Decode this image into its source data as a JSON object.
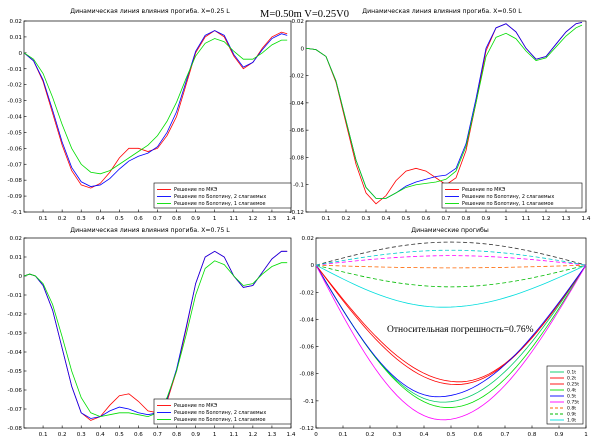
{
  "figure": {
    "param_label": "M=0.50m   V=0.25V0"
  },
  "chart_data": [
    {
      "type": "line",
      "title": "Динамическая линия влияния прогиба. X=0.25 L",
      "xlim": [
        0,
        1.4
      ],
      "ylim": [
        -0.1,
        0.02
      ],
      "xticks": [
        "0.1",
        "0.2",
        "0.3",
        "0.4",
        "0.5",
        "0.6",
        "0.7",
        "0.8",
        "0.9",
        "1",
        "1.1",
        "1.2",
        "1.3",
        "1.4"
      ],
      "yticks": [
        "0.02",
        "0.01",
        "0",
        "-0.01",
        "-0.02",
        "-0.03",
        "-0.04",
        "-0.05",
        "-0.06",
        "-0.07",
        "-0.08",
        "-0.09",
        "-0.1"
      ],
      "legend_position": "bottom-right",
      "series": [
        {
          "name": "Решение по МКЭ",
          "color": "#ff0000",
          "x": [
            0,
            0.05,
            0.1,
            0.15,
            0.2,
            0.25,
            0.3,
            0.35,
            0.4,
            0.45,
            0.5,
            0.55,
            0.6,
            0.65,
            0.7,
            0.75,
            0.8,
            0.85,
            0.9,
            0.95,
            1.0,
            1.05,
            1.1,
            1.15,
            1.2,
            1.25,
            1.3,
            1.35,
            1.38
          ],
          "y": [
            0,
            -0.005,
            -0.018,
            -0.038,
            -0.058,
            -0.074,
            -0.083,
            -0.085,
            -0.082,
            -0.075,
            -0.066,
            -0.06,
            -0.06,
            -0.062,
            -0.06,
            -0.052,
            -0.04,
            -0.02,
            0.0,
            0.01,
            0.014,
            0.01,
            -0.002,
            -0.01,
            -0.006,
            0.003,
            0.01,
            0.013,
            0.012
          ]
        },
        {
          "name": "Решение по Болотину, 2 слагаемых",
          "color": "#0000ff",
          "x": [
            0,
            0.05,
            0.1,
            0.15,
            0.2,
            0.25,
            0.3,
            0.35,
            0.4,
            0.45,
            0.5,
            0.55,
            0.6,
            0.65,
            0.7,
            0.75,
            0.8,
            0.85,
            0.9,
            0.95,
            1.0,
            1.05,
            1.1,
            1.15,
            1.2,
            1.25,
            1.3,
            1.35,
            1.38
          ],
          "y": [
            0,
            -0.005,
            -0.017,
            -0.036,
            -0.056,
            -0.072,
            -0.081,
            -0.084,
            -0.083,
            -0.079,
            -0.073,
            -0.068,
            -0.065,
            -0.063,
            -0.059,
            -0.05,
            -0.037,
            -0.018,
            0.001,
            0.011,
            0.014,
            0.011,
            -0.001,
            -0.009,
            -0.006,
            0.002,
            0.009,
            0.012,
            0.011
          ]
        },
        {
          "name": "Решение по Болотину, 1 слагаемое",
          "color": "#00dd00",
          "x": [
            0,
            0.05,
            0.1,
            0.15,
            0.2,
            0.25,
            0.3,
            0.35,
            0.4,
            0.45,
            0.5,
            0.55,
            0.6,
            0.65,
            0.7,
            0.75,
            0.8,
            0.85,
            0.9,
            0.95,
            1.0,
            1.05,
            1.1,
            1.15,
            1.2,
            1.25,
            1.3,
            1.35,
            1.38
          ],
          "y": [
            0,
            -0.004,
            -0.013,
            -0.028,
            -0.045,
            -0.06,
            -0.07,
            -0.075,
            -0.076,
            -0.074,
            -0.07,
            -0.066,
            -0.062,
            -0.058,
            -0.052,
            -0.043,
            -0.031,
            -0.016,
            -0.002,
            0.006,
            0.009,
            0.007,
            0.001,
            -0.004,
            -0.004,
            0.0,
            0.005,
            0.008,
            0.008
          ]
        }
      ]
    },
    {
      "type": "line",
      "title": "Динамическая линия влияния прогиба. X=0.50 L",
      "xlim": [
        0,
        1.4
      ],
      "ylim": [
        -0.12,
        0.02
      ],
      "xticks": [
        "0.1",
        "0.2",
        "0.3",
        "0.4",
        "0.5",
        "0.6",
        "0.7",
        "0.8",
        "0.9",
        "1",
        "1.1",
        "1.2",
        "1.3",
        "1.4"
      ],
      "yticks": [
        "0.02",
        "0",
        "-0.02",
        "-0.04",
        "-0.06",
        "-0.08",
        "-0.1",
        "-0.12"
      ],
      "legend_position": "bottom-right",
      "series": [
        {
          "name": "Решение по МКЭ",
          "color": "#ff0000",
          "x": [
            0,
            0.05,
            0.1,
            0.15,
            0.2,
            0.25,
            0.3,
            0.35,
            0.4,
            0.45,
            0.5,
            0.55,
            0.6,
            0.65,
            0.7,
            0.75,
            0.8,
            0.85,
            0.9,
            0.95,
            1.0,
            1.05,
            1.1,
            1.15,
            1.2,
            1.25,
            1.3,
            1.35,
            1.38
          ],
          "y": [
            0,
            -0.001,
            -0.006,
            -0.025,
            -0.055,
            -0.085,
            -0.106,
            -0.114,
            -0.108,
            -0.097,
            -0.09,
            -0.088,
            -0.09,
            -0.095,
            -0.1,
            -0.095,
            -0.075,
            -0.04,
            -0.002,
            0.015,
            0.018,
            0.012,
            0.0,
            -0.008,
            -0.006,
            0.003,
            0.012,
            0.018,
            0.019
          ]
        },
        {
          "name": "Решение по Болотину, 2 слагаемых",
          "color": "#0000ff",
          "x": [
            0,
            0.05,
            0.1,
            0.15,
            0.2,
            0.25,
            0.3,
            0.35,
            0.4,
            0.45,
            0.5,
            0.55,
            0.6,
            0.65,
            0.7,
            0.75,
            0.8,
            0.85,
            0.9,
            0.95,
            1.0,
            1.05,
            1.1,
            1.15,
            1.2,
            1.25,
            1.3,
            1.35,
            1.38
          ],
          "y": [
            0,
            -0.001,
            -0.006,
            -0.024,
            -0.053,
            -0.082,
            -0.102,
            -0.11,
            -0.11,
            -0.106,
            -0.101,
            -0.098,
            -0.096,
            -0.094,
            -0.093,
            -0.088,
            -0.07,
            -0.037,
            0.0,
            0.015,
            0.018,
            0.012,
            0.0,
            -0.008,
            -0.006,
            0.003,
            0.012,
            0.018,
            0.019
          ]
        },
        {
          "name": "Решение по Болотину, 1 слагаемое",
          "color": "#00dd00",
          "x": [
            0,
            0.05,
            0.1,
            0.15,
            0.2,
            0.25,
            0.3,
            0.35,
            0.4,
            0.45,
            0.5,
            0.55,
            0.6,
            0.65,
            0.7,
            0.75,
            0.8,
            0.85,
            0.9,
            0.95,
            1.0,
            1.05,
            1.1,
            1.15,
            1.2,
            1.25,
            1.3,
            1.35,
            1.38
          ],
          "y": [
            0,
            -0.001,
            -0.006,
            -0.024,
            -0.053,
            -0.082,
            -0.102,
            -0.11,
            -0.11,
            -0.106,
            -0.102,
            -0.1,
            -0.099,
            -0.098,
            -0.096,
            -0.09,
            -0.072,
            -0.04,
            -0.006,
            0.008,
            0.011,
            0.007,
            -0.002,
            -0.009,
            -0.007,
            0.001,
            0.009,
            0.015,
            0.017
          ]
        }
      ]
    },
    {
      "type": "line",
      "title": "Динамическая линия влияния прогиба. X=0.75 L",
      "xlim": [
        0,
        1.4
      ],
      "ylim": [
        -0.08,
        0.02
      ],
      "xticks": [
        "0.1",
        "0.2",
        "0.3",
        "0.4",
        "0.5",
        "0.6",
        "0.7",
        "0.8",
        "0.9",
        "1",
        "1.1",
        "1.2",
        "1.3",
        "1.4"
      ],
      "yticks": [
        "0.02",
        "0.01",
        "0",
        "-0.01",
        "-0.02",
        "-0.03",
        "-0.04",
        "-0.05",
        "-0.06",
        "-0.07",
        "-0.08"
      ],
      "legend_position": "bottom-right",
      "series": [
        {
          "name": "Решение по МКЭ",
          "color": "#ff0000",
          "x": [
            0,
            0.03,
            0.06,
            0.1,
            0.15,
            0.2,
            0.25,
            0.3,
            0.35,
            0.4,
            0.45,
            0.5,
            0.55,
            0.6,
            0.65,
            0.7,
            0.75,
            0.8,
            0.85,
            0.9,
            0.95,
            1.0,
            1.05,
            1.1,
            1.15,
            1.2,
            1.25,
            1.3,
            1.35,
            1.38
          ],
          "y": [
            0,
            0.001,
            0.0,
            -0.005,
            -0.018,
            -0.038,
            -0.058,
            -0.072,
            -0.076,
            -0.074,
            -0.068,
            -0.063,
            -0.062,
            -0.066,
            -0.071,
            -0.072,
            -0.066,
            -0.05,
            -0.028,
            -0.004,
            0.01,
            0.013,
            0.01,
            0.0,
            -0.006,
            -0.005,
            0.002,
            0.009,
            0.013,
            0.013
          ]
        },
        {
          "name": "Решение по Болотину, 2 слагаемых",
          "color": "#0000ff",
          "x": [
            0,
            0.03,
            0.06,
            0.1,
            0.15,
            0.2,
            0.25,
            0.3,
            0.35,
            0.4,
            0.45,
            0.5,
            0.55,
            0.6,
            0.65,
            0.7,
            0.75,
            0.8,
            0.85,
            0.9,
            0.95,
            1.0,
            1.05,
            1.1,
            1.15,
            1.2,
            1.25,
            1.3,
            1.35,
            1.38
          ],
          "y": [
            0,
            0.001,
            0.0,
            -0.005,
            -0.018,
            -0.038,
            -0.058,
            -0.072,
            -0.075,
            -0.074,
            -0.071,
            -0.069,
            -0.07,
            -0.072,
            -0.073,
            -0.072,
            -0.065,
            -0.049,
            -0.027,
            -0.004,
            0.01,
            0.013,
            0.01,
            0.0,
            -0.006,
            -0.005,
            0.002,
            0.009,
            0.013,
            0.013
          ]
        },
        {
          "name": "Решение по Болотину, 1 слагаемое",
          "color": "#00dd00",
          "x": [
            0,
            0.03,
            0.06,
            0.1,
            0.15,
            0.2,
            0.25,
            0.3,
            0.35,
            0.4,
            0.45,
            0.5,
            0.55,
            0.6,
            0.65,
            0.7,
            0.75,
            0.8,
            0.85,
            0.9,
            0.95,
            1.0,
            1.05,
            1.1,
            1.15,
            1.2,
            1.25,
            1.3,
            1.35,
            1.38
          ],
          "y": [
            0,
            0.001,
            0.0,
            -0.004,
            -0.015,
            -0.032,
            -0.05,
            -0.064,
            -0.072,
            -0.074,
            -0.073,
            -0.072,
            -0.072,
            -0.073,
            -0.074,
            -0.072,
            -0.064,
            -0.05,
            -0.031,
            -0.01,
            0.004,
            0.008,
            0.006,
            0.0,
            -0.005,
            -0.004,
            0.001,
            0.005,
            0.007,
            0.007
          ]
        }
      ]
    },
    {
      "type": "line",
      "title": "Динамические прогибы",
      "annotation": "Относительная погрешность=0.76%",
      "xlim": [
        0,
        1
      ],
      "ylim": [
        -0.12,
        0.02
      ],
      "xticks": [
        "0",
        "0.1",
        "0.2",
        "0.3",
        "0.4",
        "0.5",
        "0.6",
        "0.7",
        "0.8",
        "0.9",
        "1"
      ],
      "yticks": [
        "0.02",
        "0",
        "-0.02",
        "-0.04",
        "-0.06",
        "-0.08",
        "-0.1",
        "-0.12"
      ],
      "legend_position": "bottom-right",
      "series": [
        {
          "name": "0.1t",
          "color": "#00cc66",
          "dash": false,
          "amplitude": -0.101,
          "peak_x": 0.47
        },
        {
          "name": "0.2t",
          "color": "#ff0000",
          "dash": false,
          "amplitude": -0.088,
          "peak_x": 0.52
        },
        {
          "name": "0.25t",
          "color": "#ff0000",
          "dash": false,
          "amplitude": -0.086,
          "peak_x": 0.53
        },
        {
          "name": "0.4t",
          "color": "#00dd00",
          "dash": false,
          "amplitude": -0.105,
          "peak_x": 0.49
        },
        {
          "name": "0.5t",
          "color": "#0000ff",
          "dash": false,
          "amplitude": -0.097,
          "peak_x": 0.45
        },
        {
          "name": "0.75t",
          "color": "#ff00ff",
          "dash": false,
          "amplitude": -0.114,
          "peak_x": 0.47
        },
        {
          "name": "0.8t",
          "color": "#ff6600",
          "dash": true,
          "amplitude": -0.002,
          "peak_x": 0.5
        },
        {
          "name": "0.9t",
          "color": "#00bb00",
          "dash": true,
          "amplitude": -0.016,
          "peak_x": 0.5
        },
        {
          "name": "1.0t",
          "color": "#00dddd",
          "dash": false,
          "amplitude": -0.031,
          "peak_x": 0.47
        },
        {
          "name": "",
          "color": "#333333",
          "dash": true,
          "amplitude": 0.017,
          "peak_x": 0.5
        },
        {
          "name": "",
          "color": "#ff00ff",
          "dash": true,
          "amplitude": 0.007,
          "peak_x": 0.5
        },
        {
          "name": "",
          "color": "#00cccc",
          "dash": true,
          "amplitude": 0.011,
          "peak_x": 0.5
        }
      ]
    }
  ]
}
